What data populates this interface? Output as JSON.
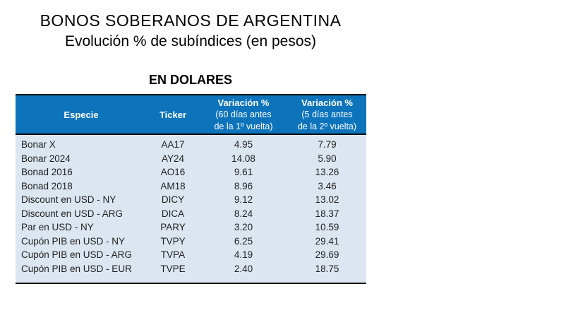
{
  "header": {
    "title": "BONOS SOBERANOS DE ARGENTINA",
    "subtitle": "Evolución % de subíndices (en pesos)"
  },
  "section": {
    "heading": "EN DOLARES"
  },
  "table": {
    "columns": {
      "especie": "Especie",
      "ticker": "Ticker",
      "var1_title": "Variación %",
      "var1_line2": "(60 días antes",
      "var1_line3": "de la 1º vuelta)",
      "var2_title": "Variación %",
      "var2_line2": "(5 días antes",
      "var2_line3": "de la 2º vuelta)"
    },
    "rows": [
      {
        "especie": "Bonar X",
        "ticker": "AA17",
        "var1": "4.95",
        "var2": "7.79"
      },
      {
        "especie": "Bonar 2024",
        "ticker": "AY24",
        "var1": "14.08",
        "var2": "5.90"
      },
      {
        "especie": "Bonad 2016",
        "ticker": "AO16",
        "var1": "9.61",
        "var2": "13.26"
      },
      {
        "especie": "Bonad 2018",
        "ticker": "AM18",
        "var1": "8.96",
        "var2": "3.46"
      },
      {
        "especie": "Discount en USD - NY",
        "ticker": "DICY",
        "var1": "9.12",
        "var2": "13.02"
      },
      {
        "especie": "Discount en USD - ARG",
        "ticker": "DICA",
        "var1": "8.24",
        "var2": "18.37"
      },
      {
        "especie": "Par en USD - NY",
        "ticker": "PARY",
        "var1": "3.20",
        "var2": "10.59"
      },
      {
        "especie": "Cupón PIB en USD - NY",
        "ticker": "TVPY",
        "var1": "6.25",
        "var2": "29.41"
      },
      {
        "especie": "Cupón PIB en USD - ARG",
        "ticker": "TVPA",
        "var1": "4.19",
        "var2": "29.69"
      },
      {
        "especie": "Cupón PIB en USD - EUR",
        "ticker": "TVPE",
        "var1": "2.40",
        "var2": "18.75"
      }
    ]
  },
  "colors": {
    "header_bg": "#0d74bc",
    "body_bg": "#dce6f1",
    "header_text": "#ffffff",
    "border": "#000000"
  },
  "chart_data": {
    "type": "table",
    "title": "BONOS SOBERANOS DE ARGENTINA — Evolución % de subíndices (en pesos) — EN DOLARES",
    "columns": [
      "Especie",
      "Ticker",
      "Variación % (60 días antes de la 1º vuelta)",
      "Variación % (5 días antes de la 2º vuelta)"
    ],
    "rows": [
      [
        "Bonar X",
        "AA17",
        4.95,
        7.79
      ],
      [
        "Bonar 2024",
        "AY24",
        14.08,
        5.9
      ],
      [
        "Bonad 2016",
        "AO16",
        9.61,
        13.26
      ],
      [
        "Bonad 2018",
        "AM18",
        8.96,
        3.46
      ],
      [
        "Discount en USD - NY",
        "DICY",
        9.12,
        13.02
      ],
      [
        "Discount en USD - ARG",
        "DICA",
        8.24,
        18.37
      ],
      [
        "Par en USD - NY",
        "PARY",
        3.2,
        10.59
      ],
      [
        "Cupón PIB en USD - NY",
        "TVPY",
        6.25,
        29.41
      ],
      [
        "Cupón PIB en USD - ARG",
        "TVPA",
        4.19,
        29.69
      ],
      [
        "Cupón PIB en USD - EUR",
        "TVPE",
        2.4,
        18.75
      ]
    ]
  }
}
